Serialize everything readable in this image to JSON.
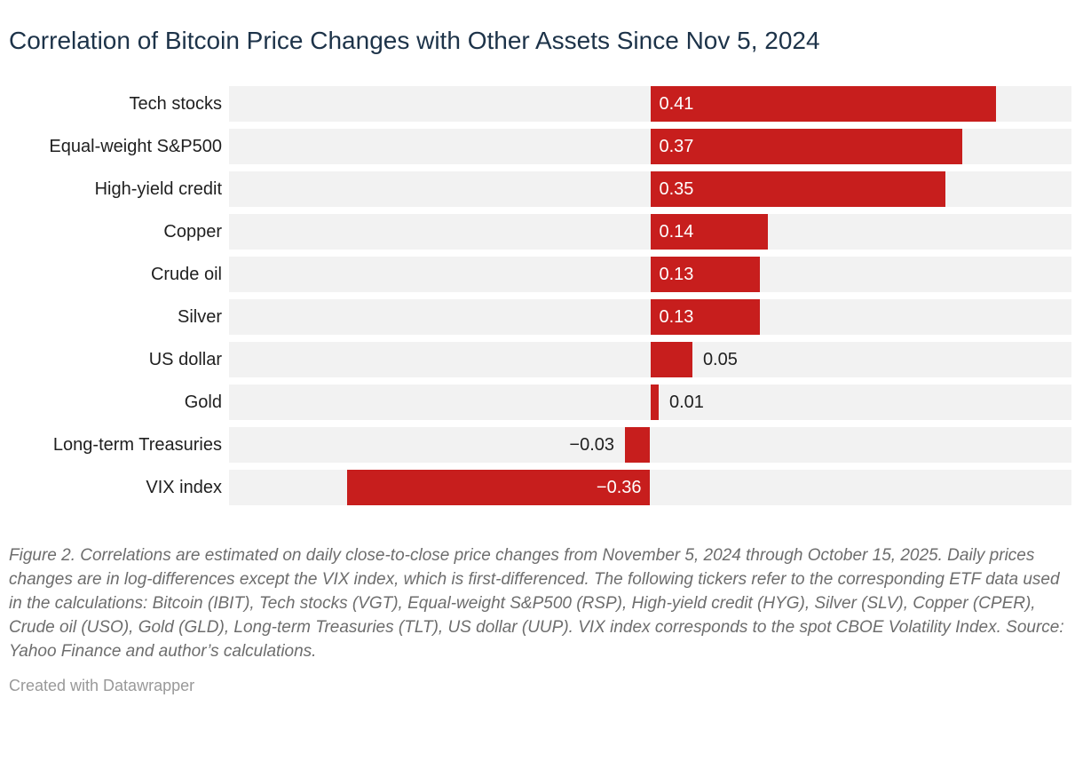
{
  "title": "Correlation of Bitcoin Price Changes with Other Assets Since Nov 5, 2024",
  "note": "Figure 2. Correlations are estimated on daily close-to-close price changes from November 5, 2024 through October 15, 2025. Daily prices changes are in log-differences except the VIX index, which is first-differenced. The following tickers refer to the corresponding ETF data used in the calculations: Bitcoin (IBIT), Tech stocks (VGT), Equal-weight S&P500 (RSP), High-yield credit (HYG), Silver (SLV), Copper (CPER), Crude oil (USO), Gold (GLD), Long-term Treasuries (TLT), US dollar (UUP). VIX index corresponds to the spot CBOE Volatility Index. Source: Yahoo Finance and author’s calculations.",
  "credit": "Created with Datawrapper",
  "chart_data": {
    "type": "bar",
    "orientation": "horizontal",
    "title": "Correlation of Bitcoin Price Changes with Other Assets Since Nov 5, 2024",
    "categories": [
      "Tech stocks",
      "Equal-weight S&P500",
      "High-yield credit",
      "Copper",
      "Crude oil",
      "Silver",
      "US dollar",
      "Gold",
      "Long-term Treasuries",
      "VIX index"
    ],
    "values": [
      0.41,
      0.37,
      0.35,
      0.14,
      0.13,
      0.13,
      0.05,
      0.01,
      -0.03,
      -0.36
    ],
    "value_labels": [
      "0.41",
      "0.37",
      "0.35",
      "0.14",
      "0.13",
      "0.13",
      "0.05",
      "0.01",
      "−0.03",
      "−0.36"
    ],
    "label_placement": [
      "inside",
      "inside",
      "inside",
      "inside",
      "inside",
      "inside",
      "outside",
      "outside",
      "outside",
      "inside"
    ],
    "xlim": [
      -0.5,
      0.5
    ],
    "xlabel": "",
    "ylabel": "",
    "grid": false,
    "legend": false
  },
  "colors": {
    "bar": "#c71e1d",
    "track": "#f2f2f2",
    "title": "#1d3349",
    "row_label": "#1f1f1f",
    "value_inside": "#ffffff",
    "value_outside": "#1f1f1f",
    "note": "#6d6d6d",
    "credit": "#999999",
    "background": "#ffffff"
  }
}
